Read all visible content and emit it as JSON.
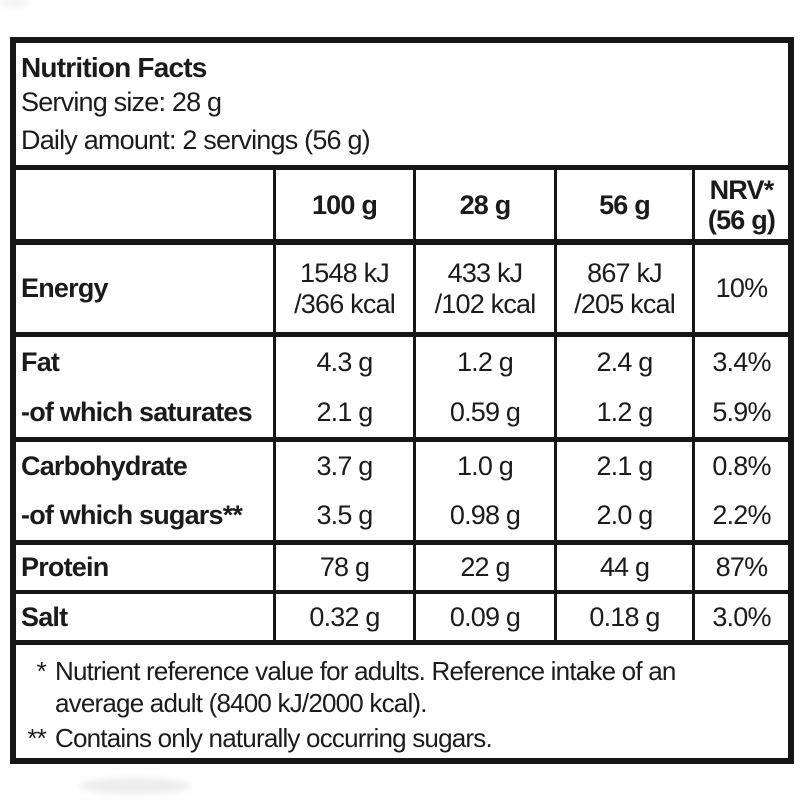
{
  "header": {
    "title": "Nutrition Facts",
    "serving_size": "Serving size: 28 g",
    "daily_amount": "Daily amount: 2 servings (56 g)"
  },
  "table": {
    "column_headers": {
      "per100": "100 g",
      "per28": "28 g",
      "per56": "56 g",
      "nrv": "NRV*\n(56 g)"
    },
    "rows": [
      {
        "label": "Energy",
        "per100": "1548 kJ\n/366 kcal",
        "per28": "433 kJ\n/102 kcal",
        "per56": "867 kJ\n/205 kcal",
        "nrv": "10%"
      },
      {
        "label": "Fat",
        "per100": "4.3 g",
        "per28": "1.2 g",
        "per56": "2.4 g",
        "nrv": "3.4%"
      },
      {
        "label": "-of which saturates",
        "per100": "2.1 g",
        "per28": "0.59 g",
        "per56": "1.2 g",
        "nrv": "5.9%"
      },
      {
        "label": "Carbohydrate",
        "per100": "3.7 g",
        "per28": "1.0 g",
        "per56": "2.1 g",
        "nrv": "0.8%"
      },
      {
        "label": "-of which sugars**",
        "per100": "3.5 g",
        "per28": "0.98 g",
        "per56": "2.0 g",
        "nrv": "2.2%"
      },
      {
        "label": "Protein",
        "per100": "78 g",
        "per28": "22 g",
        "per56": "44 g",
        "nrv": "87%"
      },
      {
        "label": "Salt",
        "per100": "0.32 g",
        "per28": "0.09 g",
        "per56": "0.18 g",
        "nrv": "3.0%"
      }
    ]
  },
  "footnotes": [
    {
      "marker": "*",
      "text": "Nutrient reference value for adults. Reference intake of an\naverage adult (8400 kJ/2000 kcal)."
    },
    {
      "marker": "**",
      "text": "Contains only naturally occurring sugars."
    }
  ],
  "colors": {
    "text": "#1b1b1b",
    "border": "#161616",
    "background": "#ffffff"
  }
}
